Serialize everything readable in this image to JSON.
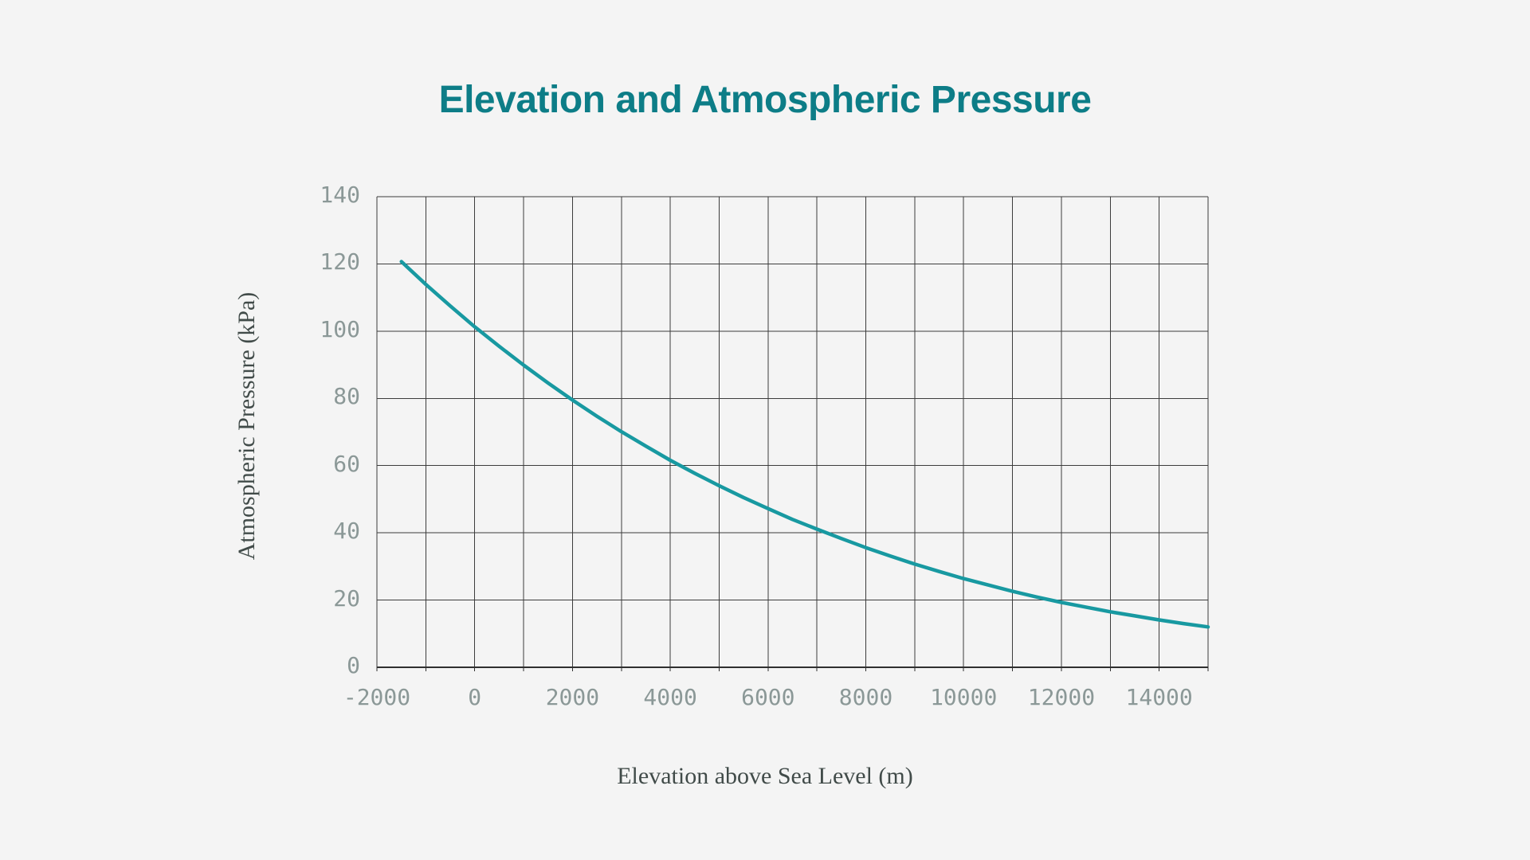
{
  "page": {
    "background_color": "#f4f4f4"
  },
  "chart": {
    "title_color": "#0d7d87",
    "axis_title_color": "#414b49",
    "tick_label_color": "#8b9897",
    "grid_color": "#3c3c3c",
    "axis_line_color": "#2f2f2f",
    "curve_color": "#1899a1"
  },
  "chart_data": {
    "type": "line",
    "title": "Elevation and Atmospheric Pressure",
    "xlabel": "Elevation above Sea Level (m)",
    "ylabel": "Atmospheric Pressure (kPa)",
    "xlim": [
      -2000,
      15000
    ],
    "ylim": [
      0,
      140
    ],
    "x_ticks": [
      -2000,
      0,
      2000,
      4000,
      6000,
      8000,
      10000,
      12000,
      14000
    ],
    "x_grid_step": 1000,
    "y_ticks": [
      0,
      20,
      40,
      60,
      80,
      100,
      120,
      140
    ],
    "grid": true,
    "legend": "none",
    "series": [
      {
        "name": "Atmospheric Pressure",
        "color": "#1899a1",
        "x": [
          -1500,
          -1000,
          -500,
          0,
          500,
          1000,
          1500,
          2000,
          2500,
          3000,
          3500,
          4000,
          4500,
          5000,
          5500,
          6000,
          6500,
          7000,
          7500,
          8000,
          8500,
          9000,
          9500,
          10000,
          10500,
          11000,
          11500,
          12000,
          12500,
          13000,
          13500,
          14000,
          14500,
          15000
        ],
        "y": [
          120.7,
          113.9,
          107.5,
          101.3,
          95.5,
          89.9,
          84.6,
          79.5,
          74.7,
          70.1,
          65.8,
          61.6,
          57.7,
          54.0,
          50.5,
          47.2,
          44.0,
          41.1,
          38.3,
          35.6,
          33.1,
          30.7,
          28.5,
          26.4,
          24.5,
          22.6,
          20.9,
          19.3,
          17.9,
          16.5,
          15.3,
          14.1,
          13.0,
          12.0
        ]
      }
    ]
  }
}
